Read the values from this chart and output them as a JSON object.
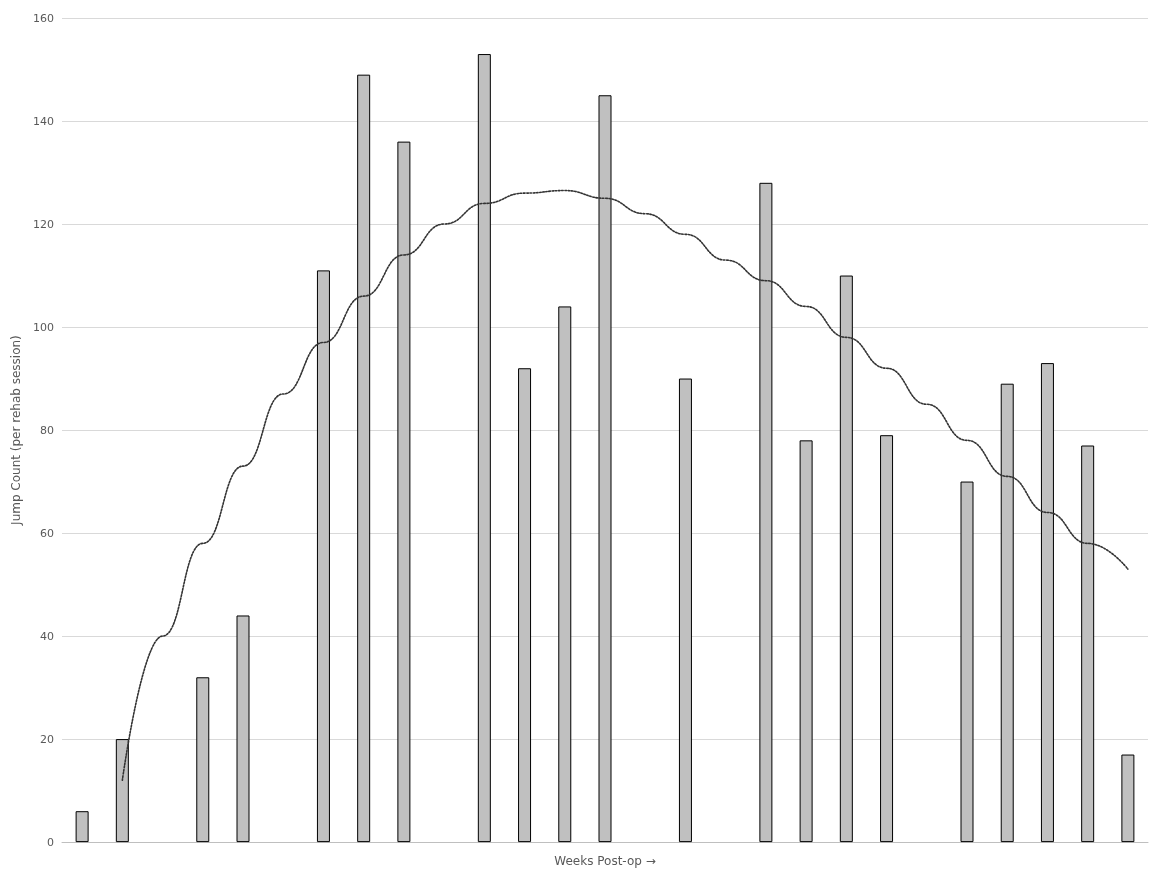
{
  "chart_data": {
    "type": "bar",
    "xlabel": "Weeks Post-op →",
    "ylabel": "Jump Count (per rehab session)",
    "categories": [
      null,
      null,
      null,
      null,
      null,
      null,
      null,
      null,
      null,
      null,
      null,
      null,
      null,
      null,
      null,
      null,
      null,
      null,
      null,
      null,
      null,
      null,
      null,
      null,
      null,
      null,
      null
    ],
    "series": [
      {
        "color": "#c0c0c0",
        "values": [
          6,
          20,
          null,
          32,
          44,
          null,
          111,
          149,
          136,
          null,
          153,
          92,
          104,
          145,
          null,
          90,
          null,
          128,
          78,
          110,
          79,
          null,
          70,
          89,
          93,
          77,
          17
        ]
      },
      {
        "type": "line",
        "color": "#333333",
        "line_style": "dotted",
        "marker": "none",
        "values": [
          null,
          12,
          40,
          58,
          73,
          87,
          97,
          106,
          114,
          120,
          124,
          126,
          126.5,
          125,
          122,
          118,
          113,
          109,
          104,
          98,
          92,
          85,
          78,
          71,
          64,
          58,
          53
        ]
      }
    ],
    "ylim": [
      0,
      160
    ],
    "yticks": [
      0,
      20,
      40,
      60,
      80,
      100,
      120,
      140,
      160
    ],
    "grid": "y"
  }
}
